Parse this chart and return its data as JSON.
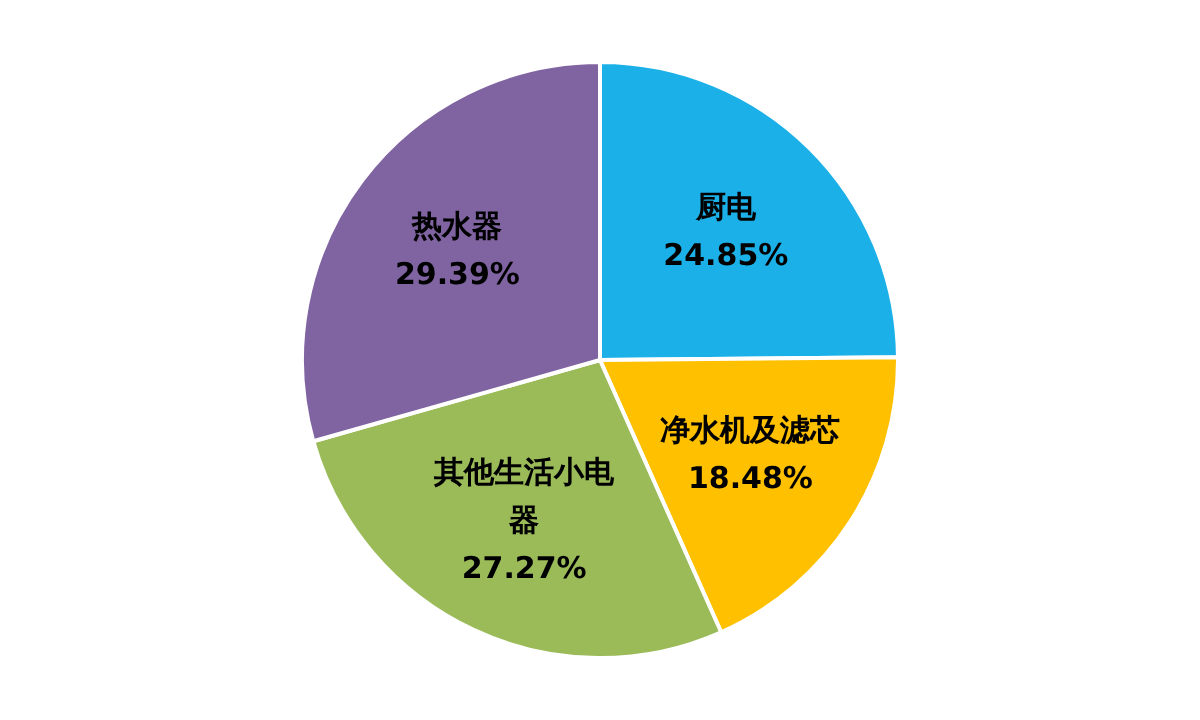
{
  "chart_data": {
    "type": "pie",
    "categories": [
      "厨电",
      "净水机及滤芯",
      "其他生活小电器",
      "热水器"
    ],
    "values": [
      24.85,
      18.48,
      27.27,
      29.39
    ],
    "value_labels": [
      "24.85%",
      "18.48%",
      "27.27%",
      "29.39%"
    ],
    "colors": [
      "#1cb0e8",
      "#ffc000",
      "#9bbb59",
      "#8064a2"
    ],
    "legend": false
  }
}
